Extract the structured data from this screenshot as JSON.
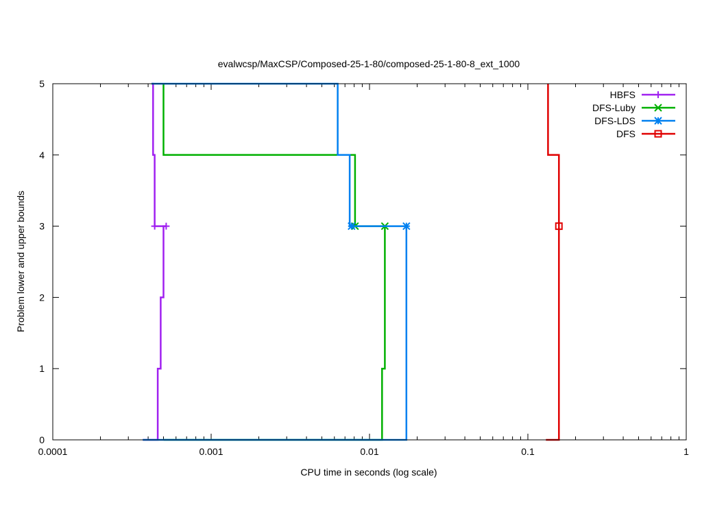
{
  "chart_data": {
    "type": "line",
    "title": "evalwcsp/MaxCSP/Composed-25-1-80/composed-25-1-80-8_ext_1000",
    "xlabel": "CPU time in seconds (log scale)",
    "ylabel": "Problem lower and upper bounds",
    "x_scale": "log",
    "xlim": [
      0.0001,
      1
    ],
    "ylim": [
      0,
      5
    ],
    "x_ticks": [
      0.0001,
      0.001,
      0.01,
      0.1,
      1
    ],
    "x_tick_labels": [
      "0.0001",
      "0.001",
      "0.01",
      "0.1",
      "1"
    ],
    "y_ticks": [
      0,
      1,
      2,
      3,
      4,
      5
    ],
    "y_tick_labels": [
      "0",
      "1",
      "2",
      "3",
      "4",
      "5"
    ],
    "grid": false,
    "legend_position": "top-right",
    "series": [
      {
        "name": "HBFS",
        "color": "#a020f0",
        "marker": "plus",
        "upper": [
          [
            0.00042,
            5
          ],
          [
            0.00043,
            5
          ],
          [
            0.00043,
            4
          ],
          [
            0.00044,
            4
          ],
          [
            0.00044,
            3
          ],
          [
            0.00052,
            3
          ]
        ],
        "lower": [
          [
            0.00037,
            0
          ],
          [
            0.00046,
            0
          ],
          [
            0.00046,
            1
          ],
          [
            0.00048,
            1
          ],
          [
            0.00048,
            2
          ],
          [
            0.0005,
            2
          ],
          [
            0.0005,
            3
          ],
          [
            0.00052,
            3
          ]
        ],
        "markers": [
          [
            0.00044,
            3
          ],
          [
            0.00052,
            3
          ]
        ]
      },
      {
        "name": "DFS-Luby",
        "color": "#00b000",
        "marker": "cross",
        "upper": [
          [
            0.0005,
            5
          ],
          [
            0.0005,
            4
          ],
          [
            0.0081,
            4
          ],
          [
            0.0081,
            3
          ],
          [
            0.0125,
            3
          ]
        ],
        "lower": [
          [
            0.0005,
            0
          ],
          [
            0.012,
            0
          ],
          [
            0.012,
            1
          ],
          [
            0.0125,
            1
          ],
          [
            0.0125,
            3
          ]
        ],
        "markers": [
          [
            0.0081,
            3
          ],
          [
            0.0125,
            3
          ]
        ]
      },
      {
        "name": "DFS-LDS",
        "color": "#0080f0",
        "marker": "star",
        "upper": [
          [
            0.00042,
            5
          ],
          [
            0.0063,
            5
          ],
          [
            0.0063,
            4
          ],
          [
            0.0075,
            4
          ],
          [
            0.0075,
            3
          ],
          [
            0.0171,
            3
          ]
        ],
        "lower": [
          [
            0.00037,
            0
          ],
          [
            0.0171,
            0
          ],
          [
            0.0171,
            3
          ]
        ],
        "markers": [
          [
            0.0077,
            3
          ],
          [
            0.0171,
            3
          ]
        ]
      },
      {
        "name": "DFS",
        "color": "#e00000",
        "marker": "square",
        "upper": [
          [
            0.134,
            5
          ],
          [
            0.134,
            4
          ],
          [
            0.157,
            4
          ],
          [
            0.157,
            3
          ]
        ],
        "lower": [
          [
            0.13,
            0
          ],
          [
            0.157,
            0
          ],
          [
            0.157,
            3
          ]
        ],
        "markers": [
          [
            0.157,
            3
          ]
        ]
      }
    ]
  }
}
